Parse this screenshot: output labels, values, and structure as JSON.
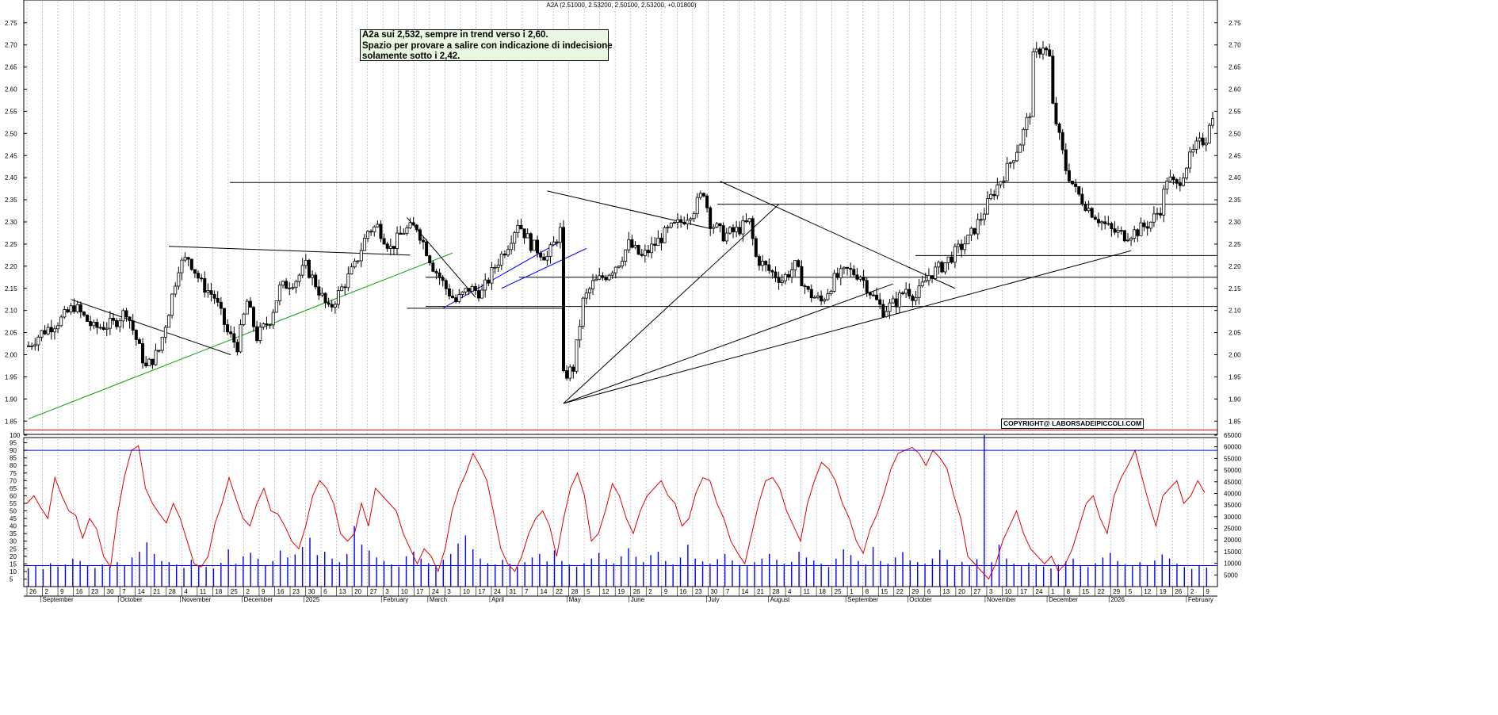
{
  "header": {
    "title": "A2A (2.51000, 2.53200, 2.50100, 2.53200, +0.01800)"
  },
  "annotation": {
    "lines": [
      "A2a sui 2,532, sempre in trend verso i 2,60.",
      "Spazio per provare a salire con indicazione di indecisione",
      "solamente sotto i 2,42."
    ]
  },
  "copyright": "COPYRIGHT@ LABORSADEIPICCOLI.COM",
  "colors": {
    "background": "#ffffff",
    "candle": "#000000",
    "rsi": "#e00000",
    "volume": "#0000ff",
    "support_green": "#00a000",
    "channel_blue": "#0000ff",
    "base_red": "#e00000",
    "grid": "#b0b0b0"
  },
  "chart_data": [
    {
      "type": "candlestick",
      "title": "A2A (2.51000, 2.53200, 2.50100, 2.53200, +0.01800)",
      "grid": true,
      "ylim": [
        1.82,
        2.78
      ],
      "y_ticks": [
        "1.85",
        "1.90",
        "1.95",
        "2.00",
        "2.05",
        "2.10",
        "2.15",
        "2.20",
        "2.25",
        "2.30",
        "2.35",
        "2.40",
        "2.45",
        "2.50",
        "2.55",
        "2.60",
        "2.65",
        "2.70",
        "2.75"
      ],
      "x_day_ticks": [
        "26",
        "2",
        "9",
        "16",
        "23",
        "30",
        "7",
        "14",
        "21",
        "28",
        "4",
        "11",
        "18",
        "25",
        "2",
        "9",
        "16",
        "23",
        "30",
        "6",
        "13",
        "20",
        "27",
        "3",
        "10",
        "17",
        "24",
        "3",
        "10",
        "17",
        "24",
        "31",
        "7",
        "14",
        "22",
        "28",
        "5",
        "12",
        "19",
        "26",
        "2",
        "9",
        "16",
        "23",
        "30",
        "7",
        "14",
        "21",
        "28",
        "4",
        "11",
        "18",
        "25",
        "1",
        "8",
        "15",
        "22",
        "29",
        "6",
        "13",
        "20",
        "27",
        "3",
        "10",
        "17",
        "24",
        "1",
        "8",
        "15",
        "22",
        "29",
        "5",
        "12",
        "19",
        "26",
        "2",
        "9"
      ],
      "x_month_labels": [
        "September",
        "October",
        "November",
        "December",
        "2025",
        "February",
        "March",
        "April",
        "May",
        "June",
        "July",
        "August",
        "September",
        "October",
        "November",
        "December",
        "2026",
        "February"
      ],
      "price_anchors": [
        [
          0,
          2.02
        ],
        [
          4,
          2.05
        ],
        [
          10,
          2.08
        ],
        [
          14,
          2.11
        ],
        [
          20,
          2.06
        ],
        [
          26,
          2.07
        ],
        [
          30,
          2.1
        ],
        [
          36,
          1.97
        ],
        [
          40,
          2.01
        ],
        [
          43,
          2.1
        ],
        [
          46,
          2.2
        ],
        [
          49,
          2.22
        ],
        [
          53,
          2.16
        ],
        [
          57,
          2.13
        ],
        [
          61,
          2.05
        ],
        [
          64,
          2.02
        ],
        [
          67,
          2.12
        ],
        [
          70,
          2.04
        ],
        [
          74,
          2.08
        ],
        [
          77,
          2.15
        ],
        [
          82,
          2.17
        ],
        [
          85,
          2.2
        ],
        [
          88,
          2.16
        ],
        [
          92,
          2.1
        ],
        [
          96,
          2.15
        ],
        [
          100,
          2.2
        ],
        [
          104,
          2.28
        ],
        [
          107,
          2.29
        ],
        [
          111,
          2.24
        ],
        [
          115,
          2.28
        ],
        [
          119,
          2.29
        ],
        [
          124,
          2.2
        ],
        [
          128,
          2.15
        ],
        [
          131,
          2.12
        ],
        [
          135,
          2.15
        ],
        [
          139,
          2.14
        ],
        [
          143,
          2.2
        ],
        [
          147,
          2.25
        ],
        [
          150,
          2.3
        ],
        [
          154,
          2.25
        ],
        [
          159,
          2.22
        ],
        [
          163,
          2.28
        ],
        [
          164,
          1.95
        ],
        [
          167,
          1.97
        ],
        [
          170,
          2.12
        ],
        [
          173,
          2.16
        ],
        [
          177,
          2.18
        ],
        [
          181,
          2.21
        ],
        [
          184,
          2.25
        ],
        [
          188,
          2.22
        ],
        [
          192,
          2.25
        ],
        [
          196,
          2.28
        ],
        [
          200,
          2.3
        ],
        [
          204,
          2.33
        ],
        [
          207,
          2.37
        ],
        [
          209,
          2.3
        ],
        [
          213,
          2.27
        ],
        [
          217,
          2.28
        ],
        [
          221,
          2.3
        ],
        [
          223,
          2.22
        ],
        [
          227,
          2.19
        ],
        [
          231,
          2.17
        ],
        [
          235,
          2.2
        ],
        [
          239,
          2.14
        ],
        [
          243,
          2.12
        ],
        [
          247,
          2.17
        ],
        [
          251,
          2.19
        ],
        [
          255,
          2.18
        ],
        [
          259,
          2.13
        ],
        [
          262,
          2.1
        ],
        [
          266,
          2.12
        ],
        [
          269,
          2.15
        ],
        [
          272,
          2.13
        ],
        [
          276,
          2.18
        ],
        [
          280,
          2.2
        ],
        [
          284,
          2.23
        ],
        [
          288,
          2.26
        ],
        [
          292,
          2.31
        ],
        [
          296,
          2.37
        ],
        [
          300,
          2.42
        ],
        [
          304,
          2.48
        ],
        [
          307,
          2.55
        ],
        [
          308,
          2.67
        ],
        [
          311,
          2.7
        ],
        [
          313,
          2.67
        ],
        [
          314,
          2.56
        ],
        [
          318,
          2.42
        ],
        [
          321,
          2.37
        ],
        [
          325,
          2.33
        ],
        [
          329,
          2.3
        ],
        [
          332,
          2.28
        ],
        [
          336,
          2.27
        ],
        [
          340,
          2.28
        ],
        [
          344,
          2.3
        ],
        [
          347,
          2.33
        ],
        [
          349,
          2.4
        ],
        [
          352,
          2.38
        ],
        [
          355,
          2.43
        ],
        [
          358,
          2.47
        ],
        [
          361,
          2.49
        ],
        [
          362,
          2.53
        ]
      ],
      "horizontal_levels": [
        2.389,
        2.34,
        2.224,
        2.175,
        2.109,
        1.83
      ],
      "trendlines": [
        {
          "name": "resistance-1",
          "from": [
            2026,
            2.12
          ],
          "to": [
            2111,
            2.02
          ],
          "color": "#000000"
        },
        {
          "name": "resistance-2",
          "from": [
            2130,
            2.25
          ],
          "to": [
            2240,
            2.23
          ],
          "color": "#000000"
        }
      ],
      "ohlc_last": {
        "open": 2.51,
        "high": 2.532,
        "low": 2.501,
        "close": 2.532,
        "change": 0.018
      }
    },
    {
      "type": "line",
      "series": [
        {
          "color": "#e00000",
          "values": [
            55,
            60,
            52,
            45,
            72,
            60,
            50,
            47,
            32,
            45,
            38,
            20,
            13,
            48,
            73,
            90,
            93,
            65,
            55,
            48,
            42,
            55,
            45,
            30,
            15,
            13,
            20,
            42,
            55,
            72,
            58,
            45,
            40,
            55,
            65,
            50,
            48,
            40,
            30,
            25,
            40,
            60,
            70,
            65,
            55,
            35,
            30,
            35,
            55,
            40,
            65,
            60,
            55,
            50,
            35,
            25,
            15,
            25,
            20,
            10,
            25,
            50,
            65,
            75,
            88,
            80,
            70,
            48,
            25,
            15,
            10,
            20,
            35,
            45,
            50,
            40,
            20,
            45,
            65,
            75,
            60,
            30,
            35,
            50,
            68,
            60,
            45,
            35,
            50,
            60,
            65,
            70,
            60,
            55,
            40,
            45,
            62,
            72,
            70,
            55,
            45,
            30,
            22,
            15,
            35,
            55,
            70,
            72,
            65,
            50,
            40,
            30,
            55,
            70,
            82,
            78,
            70,
            55,
            45,
            30,
            22,
            38,
            48,
            62,
            78,
            88,
            90,
            92,
            88,
            80,
            90,
            85,
            78,
            60,
            45,
            20,
            15,
            10,
            5,
            15,
            30,
            40,
            50,
            35,
            25,
            20,
            15,
            20,
            10,
            15,
            25,
            40,
            55,
            60,
            45,
            35,
            60,
            72,
            80,
            90,
            72,
            55,
            40,
            60,
            65,
            70,
            55,
            60,
            70,
            62
          ]
        }
      ],
      "ylim": [
        0,
        100
      ],
      "y_ticks": [
        "5",
        "10",
        "15",
        "20",
        "25",
        "30",
        "35",
        "40",
        "45",
        "50",
        "55",
        "60",
        "65",
        "70",
        "75",
        "80",
        "85",
        "90",
        "95",
        "100"
      ],
      "reference_level": 90,
      "grid": true
    },
    {
      "type": "bar",
      "series": [
        {
          "color": "#0000ff",
          "values": [
            8000,
            9000,
            7500,
            10000,
            8500,
            9500,
            12000,
            11000,
            9000,
            8000,
            9500,
            8500,
            10500,
            9000,
            12500,
            15000,
            19000,
            14000,
            11000,
            10500,
            9500,
            8000,
            11500,
            9000,
            8500,
            7800,
            10200,
            16000,
            9800,
            13000,
            14500,
            12000,
            9000,
            11000,
            15500,
            12500,
            13800,
            17000,
            21000,
            13500,
            15000,
            12000,
            10500,
            14000,
            26000,
            18000,
            15500,
            12500,
            11000,
            9500,
            8500,
            13000,
            15000,
            12000,
            10000,
            9000,
            11500,
            14000,
            18500,
            22000,
            16000,
            12000,
            10000,
            9500,
            11500,
            9800,
            8500,
            10500,
            12500,
            14000,
            10800,
            15500,
            11000,
            9500,
            8500,
            10000,
            12000,
            14500,
            11800,
            9900,
            13000,
            16500,
            12800,
            10500,
            13500,
            15000,
            11000,
            9500,
            12500,
            18000,
            12000,
            10800,
            9800,
            11800,
            14000,
            11200,
            9200,
            8800,
            10500,
            12000,
            14000,
            11500,
            9800,
            10600,
            15000,
            12500,
            11200,
            9800,
            8400,
            12000,
            16000,
            13500,
            11000,
            9500,
            17000,
            11000,
            9800,
            12500,
            14800,
            11200,
            10500,
            9800,
            12000,
            15800,
            11500,
            9000,
            10600,
            8800,
            11800,
            65000,
            10500,
            18000,
            12000,
            9800,
            8800,
            10200,
            9500,
            8600,
            7800,
            9400,
            10800,
            12000,
            9200,
            8400,
            10000,
            12500,
            14500,
            11000,
            9600,
            8800,
            10500,
            9000,
            11200,
            13800,
            12000,
            9800,
            8400,
            7600,
            9000,
            8200
          ]
        }
      ],
      "ylim": [
        0,
        65000
      ],
      "y_ticks": [
        "5000",
        "10000",
        "15000",
        "20000",
        "25000",
        "30000",
        "35000",
        "40000",
        "45000",
        "50000",
        "55000",
        "60000",
        "65000"
      ],
      "reference_level": 9000,
      "grid": true
    }
  ]
}
